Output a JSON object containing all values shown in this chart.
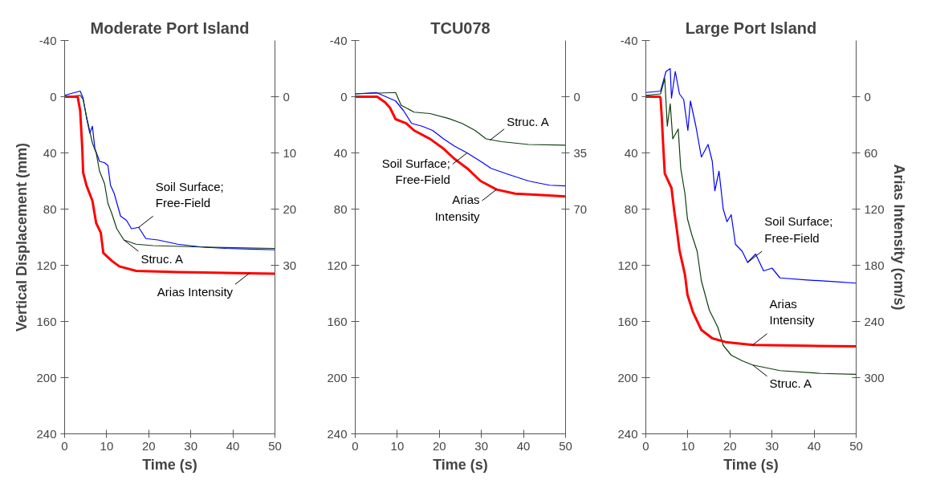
{
  "chart_data": [
    {
      "type": "line",
      "title": "Moderate Port Island",
      "xlabel": "Time (s)",
      "ylabel": "Vertical Displacement (mm)",
      "xlim": [
        0,
        50
      ],
      "xticks": [
        0,
        10,
        20,
        30,
        40,
        50
      ],
      "ylim": [
        240,
        -40
      ],
      "yticks": [
        -40,
        0,
        40,
        80,
        120,
        160,
        200,
        240
      ],
      "y2lim": [
        60,
        -10
      ],
      "y2ticks": [
        0,
        10,
        20,
        30
      ],
      "grid": false,
      "series": [
        {
          "color": "#0000ff",
          "x": [
            0,
            3.7,
            4.4,
            5.2,
            6.0,
            6.6,
            7.2,
            8.3,
            9.5,
            10.3,
            10.9,
            11.8,
            13.3,
            14.7,
            15.9,
            17.6,
            19.3,
            22.2,
            26.9,
            32.6,
            38.4,
            44.2,
            50
          ],
          "values": [
            -1,
            -4,
            1,
            15,
            26,
            21,
            37,
            46,
            47,
            49,
            63,
            69,
            85,
            88,
            94,
            93,
            101,
            102,
            105,
            107,
            108,
            108.5,
            109
          ]
        },
        {
          "color": "#0f3d0f",
          "x": [
            0,
            3.7,
            4.4,
            5.2,
            6.6,
            7.5,
            8.3,
            9.5,
            10.3,
            11.2,
            12.4,
            14.1,
            17.0,
            21.0,
            32.6,
            50
          ],
          "values": [
            0,
            -1,
            2,
            14,
            33,
            40,
            53,
            62,
            76,
            83,
            94,
            102,
            105,
            106,
            107,
            108
          ]
        },
        {
          "color": "#ff0000",
          "axis": "y2",
          "x": [
            0,
            3.1,
            3.7,
            4.2,
            4.4,
            5.2,
            6.6,
            7.5,
            8.6,
            9.2,
            11.2,
            13.0,
            17.0,
            26.9,
            40.8,
            50
          ],
          "values": [
            0,
            0,
            2.5,
            9.2,
            13.5,
            15.8,
            18.5,
            22.5,
            24.2,
            27.8,
            29.2,
            30.2,
            31,
            31.2,
            31.4,
            31.5
          ]
        }
      ],
      "annotations": [
        {
          "text": "Soil Surface;\nFree-Field",
          "x": 17.6,
          "y": 93
        },
        {
          "text": "Struc. A",
          "x": 14.1,
          "y": 102
        },
        {
          "text": "Arias Intensity",
          "x": 44,
          "y": 125.5
        }
      ]
    },
    {
      "type": "line",
      "title": "TCU078",
      "xlabel": "Time (s)",
      "xlim": [
        0,
        50
      ],
      "xticks": [
        0,
        10,
        20,
        30,
        40,
        50
      ],
      "ylim": [
        240,
        -40
      ],
      "yticks": [
        -40,
        0,
        40,
        80,
        120,
        160,
        200,
        240
      ],
      "y2lim": [
        210,
        -35
      ],
      "y2ticks": [
        0,
        35,
        70
      ],
      "grid": false,
      "series": [
        {
          "color": "#0000ff",
          "x": [
            0,
            5.0,
            9.6,
            11.5,
            13.4,
            15.9,
            18.4,
            21.0,
            23.5,
            26.6,
            29.8,
            32.3,
            36.1,
            41.2,
            46.2,
            50
          ],
          "values": [
            -2,
            -3,
            3,
            10,
            19,
            21,
            24,
            30,
            35,
            40,
            46,
            51,
            55,
            60,
            63,
            63.5
          ]
        },
        {
          "color": "#0f3d0f",
          "x": [
            0,
            9.6,
            10.9,
            14.0,
            17.8,
            22.2,
            25.4,
            28.5,
            31.1,
            34.8,
            41.2,
            50
          ],
          "values": [
            -2,
            -3,
            6,
            11,
            12,
            15.5,
            19,
            24,
            30,
            32,
            34,
            34.5
          ]
        },
        {
          "color": "#ff0000",
          "axis": "y2",
          "x": [
            0,
            5.2,
            7.1,
            8.3,
            9.6,
            12.1,
            14.0,
            17.8,
            21.0,
            23.5,
            26.6,
            29.8,
            33.6,
            38.0,
            44.3,
            50
          ],
          "values": [
            0,
            0,
            3.5,
            7,
            14,
            16.6,
            21,
            26.3,
            32.4,
            38.5,
            44.6,
            52.5,
            57.8,
            60.4,
            61.3,
            62.1
          ]
        }
      ],
      "annotations": [
        {
          "text": "Struc. A",
          "x": 32,
          "y": 31
        },
        {
          "text": "Soil Surface;\nFree-Field",
          "x": 26.6,
          "y": 40
        },
        {
          "text": "Arias\nIntensity",
          "x": 33.6,
          "y": 66
        }
      ]
    },
    {
      "type": "line",
      "title": "Large Port Island",
      "xlabel": "Time (s)",
      "y2label": "Arias Intensity (cm/s)",
      "xlim": [
        0,
        50
      ],
      "xticks": [
        0,
        10,
        20,
        30,
        40,
        50
      ],
      "ylim": [
        240,
        -40
      ],
      "yticks": [
        -40,
        0,
        40,
        80,
        120,
        160,
        200,
        240
      ],
      "y2lim": [
        360,
        -60
      ],
      "y2ticks": [
        0,
        60,
        120,
        180,
        240,
        300
      ],
      "grid": false,
      "series": [
        {
          "color": "#0000ff",
          "x": [
            0,
            3.5,
            4.8,
            5.8,
            6.1,
            7.0,
            8.0,
            9.0,
            10.0,
            10.6,
            11.9,
            13.2,
            14.8,
            15.8,
            16.4,
            17.4,
            18.4,
            19.3,
            20.3,
            21.3,
            22.9,
            24.2,
            26.1,
            28.0,
            30.0,
            31.9,
            38.4,
            44.8,
            50
          ],
          "values": [
            -3,
            -4,
            -18,
            -20,
            1,
            -18,
            -2,
            2,
            24,
            3,
            21,
            43,
            34,
            46,
            67,
            53,
            80,
            89,
            84,
            105,
            110,
            118,
            112,
            124,
            122,
            129,
            130.5,
            131.6,
            132.7
          ]
        },
        {
          "color": "#0f3d0f",
          "x": [
            0,
            3.5,
            4.5,
            5.1,
            5.8,
            6.4,
            7.7,
            8.3,
            9.3,
            9.9,
            10.9,
            12.2,
            13.2,
            15.1,
            17.1,
            18.4,
            20.3,
            22.9,
            25.4,
            31.9,
            41.6,
            50
          ],
          "values": [
            -1,
            -2,
            -13,
            21,
            5,
            30,
            23,
            51,
            69,
            87,
            98,
            110,
            131,
            152,
            164,
            177,
            184,
            188,
            191,
            195,
            197,
            197.6
          ]
        },
        {
          "color": "#ff0000",
          "axis": "y2",
          "x": [
            0,
            3.3,
            3.5,
            3.8,
            4.1,
            4.5,
            6.1,
            6.7,
            7.4,
            8.0,
            9.3,
            9.9,
            11.2,
            13.2,
            15.8,
            19.0,
            25.4,
            38.4,
            50
          ],
          "values": [
            0,
            0,
            1.5,
            22.5,
            49.5,
            82,
            97.5,
            120,
            143,
            164,
            190,
            211.5,
            230,
            249,
            258,
            262,
            265,
            266,
            266.5
          ]
        }
      ],
      "annotations": [
        {
          "text": "Soil Surface;\nFree-Field",
          "x": 24.2,
          "y": 118
        },
        {
          "text": "Arias\nIntensity",
          "x": 25.4,
          "y": 176.7
        },
        {
          "text": "Struc. A",
          "x": 25.4,
          "y": 191
        }
      ]
    }
  ]
}
